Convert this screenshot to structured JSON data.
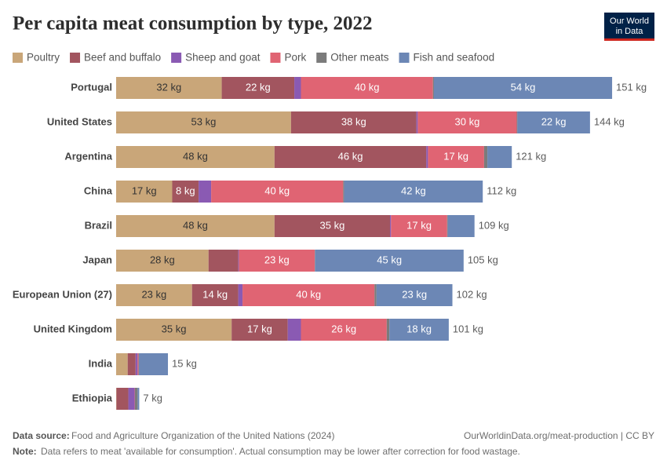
{
  "chart_data": {
    "type": "stacked-bar",
    "title": "Per capita meat consumption by type, 2022",
    "logo": [
      "Our World",
      "in Data"
    ],
    "categories": [
      "Portugal",
      "United States",
      "Argentina",
      "China",
      "Brazil",
      "Japan",
      "European Union (27)",
      "United Kingdom",
      "India",
      "Ethiopia"
    ],
    "xlim": [
      0,
      151
    ],
    "series": [
      {
        "name": "Poultry",
        "color": "#c9a679",
        "values": [
          32,
          53,
          48,
          17,
          48,
          28,
          23,
          35,
          3.5,
          0.1
        ],
        "value_labels": [
          "32 kg",
          "53 kg",
          "48 kg",
          "17 kg",
          "48 kg",
          "28 kg",
          "23 kg",
          "35 kg",
          null,
          null
        ]
      },
      {
        "name": "Beef and buffalo",
        "color": "#a2555f",
        "values": [
          22,
          38,
          46,
          8,
          35,
          9,
          14,
          17,
          2.4,
          3.6
        ],
        "value_labels": [
          "22 kg",
          "38 kg",
          "46 kg",
          "8 kg",
          "35 kg",
          null,
          "14 kg",
          "17 kg",
          null,
          null
        ]
      },
      {
        "name": "Sheep and goat",
        "color": "#8a5ab3",
        "values": [
          2,
          0.4,
          0.5,
          3.8,
          0.3,
          0.2,
          1.3,
          4,
          0.6,
          1.9
        ],
        "value_labels": [
          null,
          null,
          null,
          null,
          null,
          null,
          null,
          null,
          null,
          null
        ]
      },
      {
        "name": "Pork",
        "color": "#e06473",
        "values": [
          40,
          30,
          17,
          40,
          17,
          23,
          40,
          26,
          0.3,
          0.1
        ],
        "value_labels": [
          "40 kg",
          "30 kg",
          "17 kg",
          "40 kg",
          "17 kg",
          "23 kg",
          "40 kg",
          "26 kg",
          null,
          null
        ]
      },
      {
        "name": "Other meats",
        "color": "#7b7b7b",
        "values": [
          0.3,
          0.2,
          1,
          0.3,
          0.2,
          0.1,
          0.6,
          0.8,
          0.1,
          0.8
        ],
        "value_labels": [
          null,
          null,
          null,
          null,
          null,
          null,
          null,
          null,
          null,
          null
        ]
      },
      {
        "name": "Fish and seafood",
        "color": "#6c87b5",
        "values": [
          54,
          22,
          7.4,
          42,
          8.1,
          45,
          23,
          18,
          8.8,
          0.5
        ],
        "value_labels": [
          "54 kg",
          "22 kg",
          null,
          "42 kg",
          null,
          "45 kg",
          "23 kg",
          "18 kg",
          null,
          null
        ]
      }
    ],
    "totals": {
      "values": [
        151,
        144,
        121,
        112,
        109,
        105,
        102,
        101,
        15,
        7
      ],
      "value_labels": [
        "151 kg",
        "144 kg",
        "121 kg",
        "112 kg",
        "109 kg",
        "105 kg",
        "102 kg",
        "101 kg",
        "15 kg",
        "7 kg"
      ]
    },
    "source_label": "Data source:",
    "source": "Food and Agriculture Organization of the United Nations (2024)",
    "url": "OurWorldinData.org/meat-production | CC BY",
    "note_label": "Note:",
    "note": "Data refers to meat 'available for consumption'. Actual consumption may be lower after correction for food wastage."
  }
}
